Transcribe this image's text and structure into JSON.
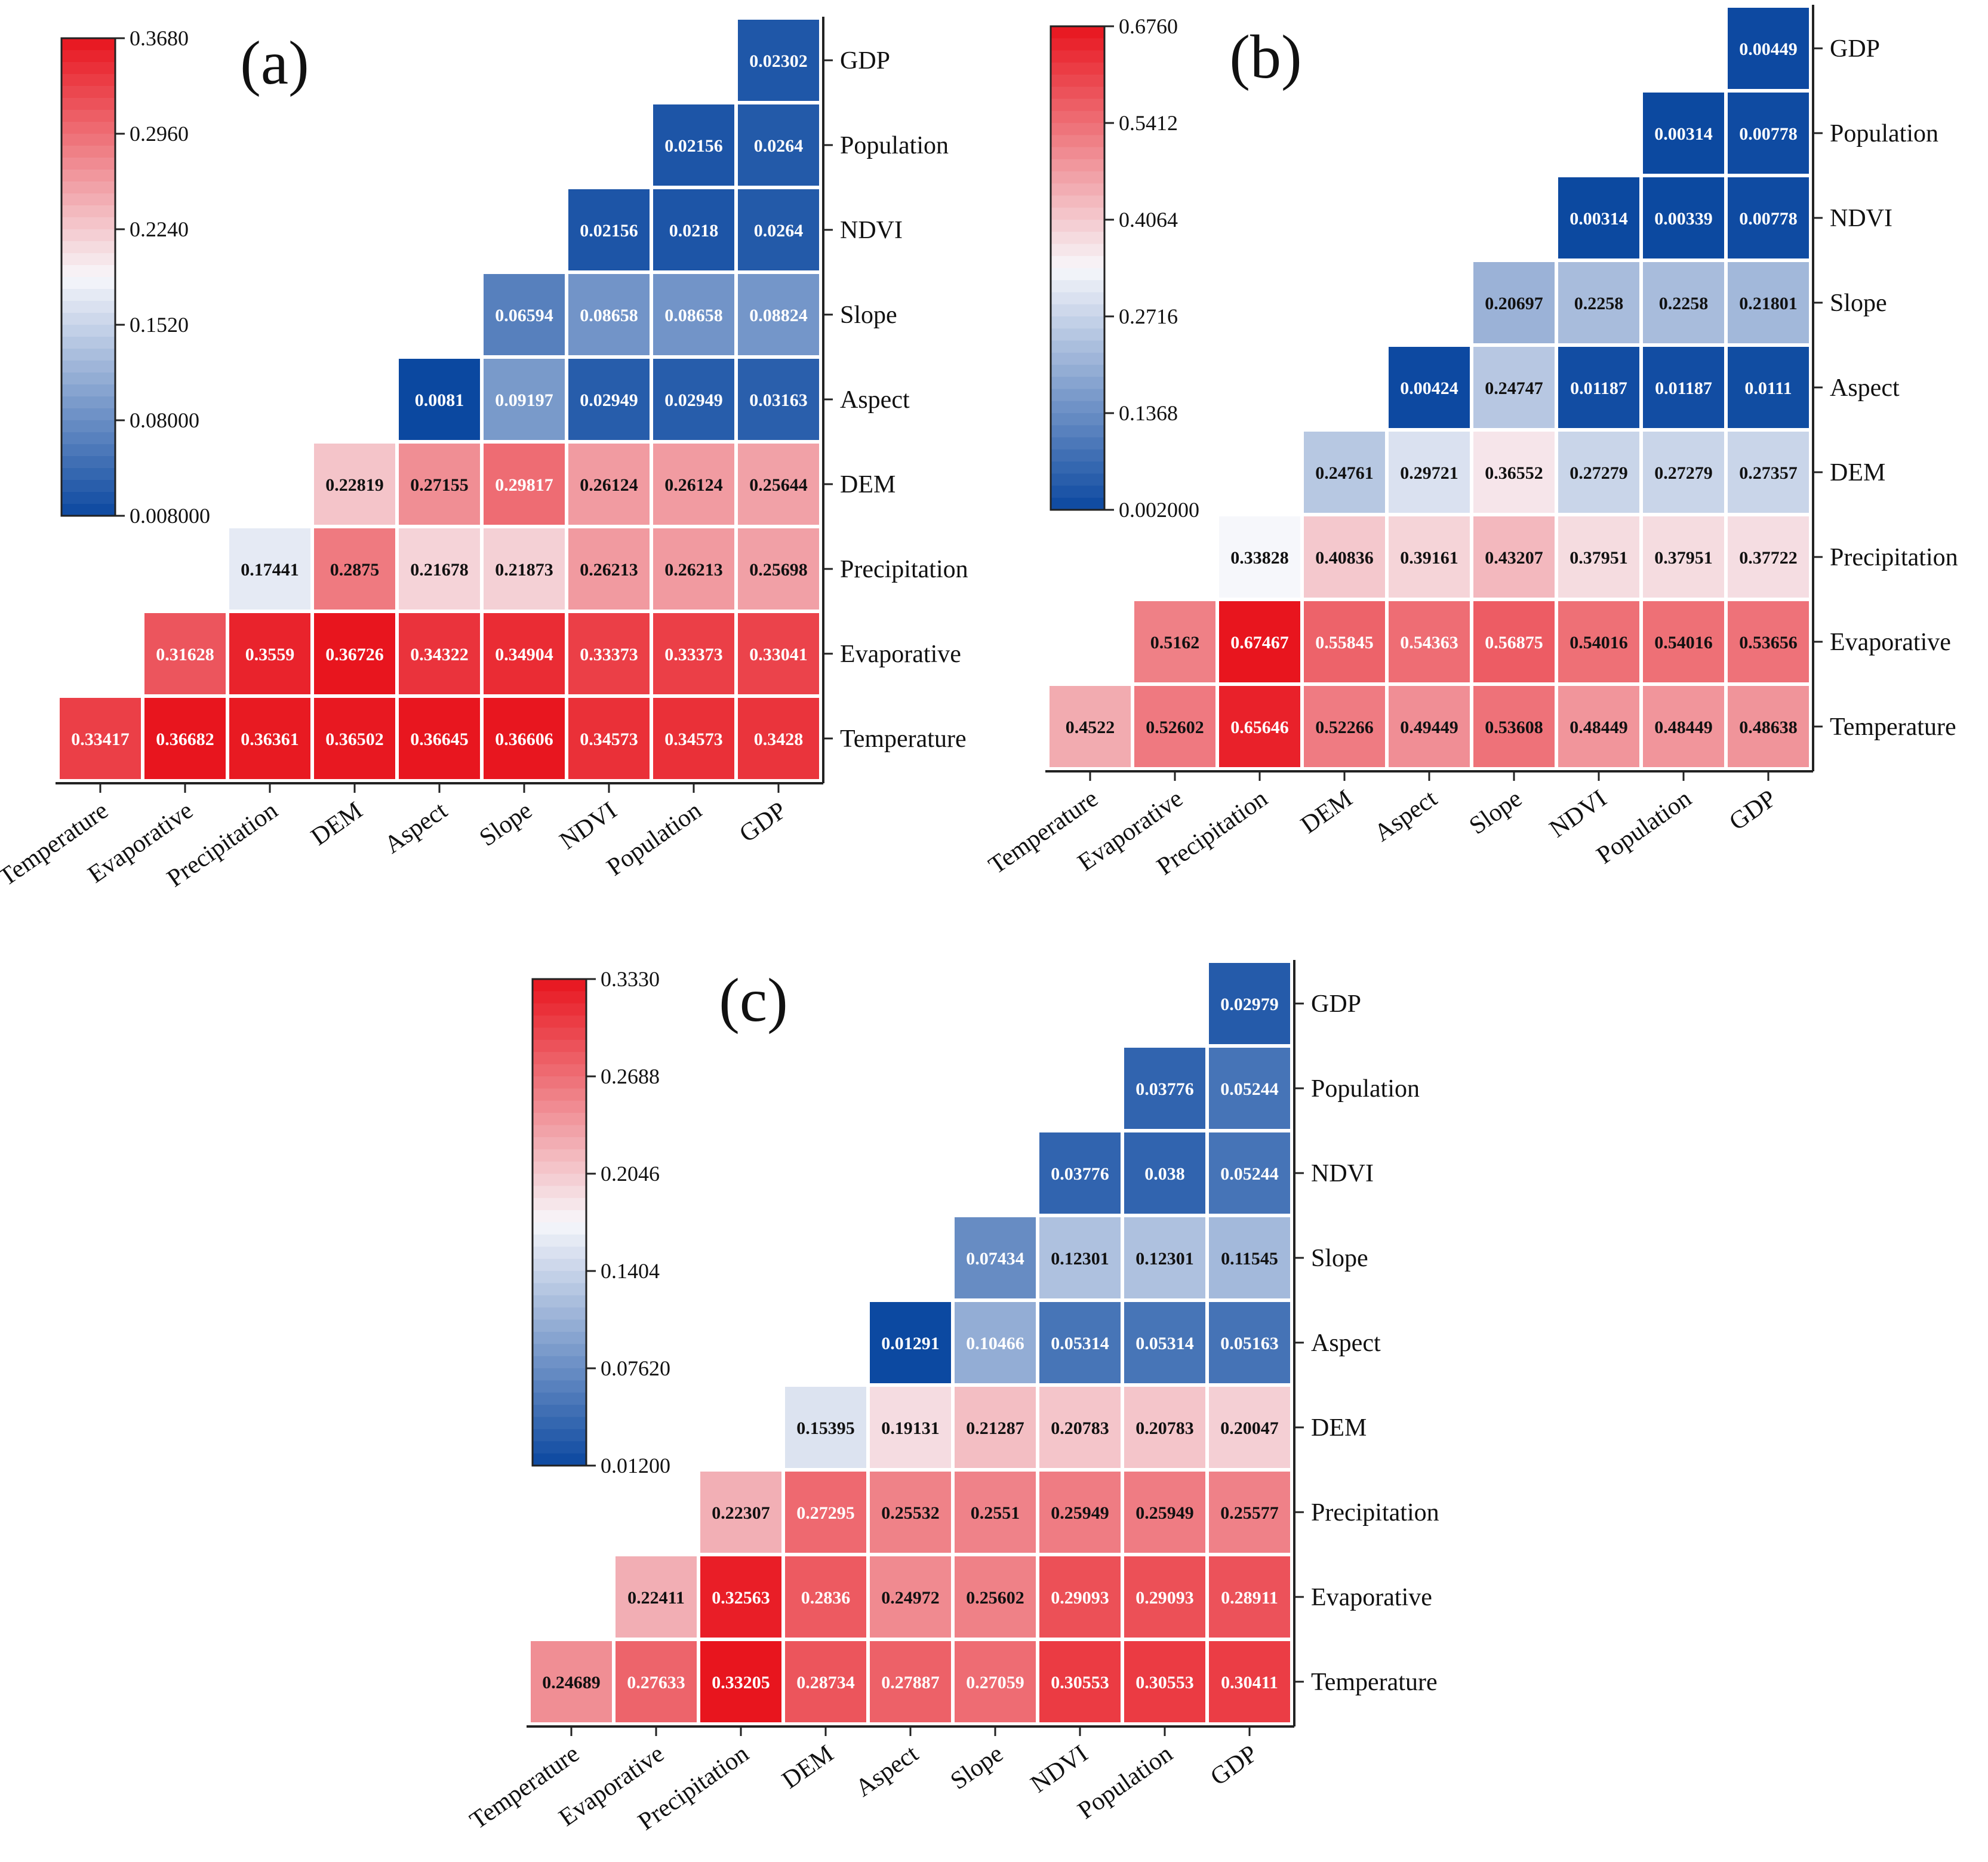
{
  "colors": {
    "low": "#0b48a0",
    "mid": "#f7f7fb",
    "high": "#e8141d",
    "gridline": "#ffffff",
    "axis": "#222222"
  },
  "chart_data": [
    {
      "type": "heatmap",
      "title": "(a)",
      "row_labels": [
        "GDP",
        "Population",
        "NDVI",
        "Slope",
        "Aspect",
        "DEM",
        "Precipitation",
        "Evaporative",
        "Temperature"
      ],
      "col_labels": [
        "Temperature",
        "Evaporative",
        "Precipitation",
        "DEM",
        "Aspect",
        "Slope",
        "NDVI",
        "Population",
        "GDP"
      ],
      "colorbar_ticks": [
        "0.3680",
        "0.2960",
        "0.2240",
        "0.1520",
        "0.08000",
        "0.008000"
      ],
      "range": [
        0.008,
        0.368
      ],
      "grid": false,
      "legend": "top-left",
      "values": [
        [
          null,
          null,
          null,
          null,
          null,
          null,
          null,
          null,
          0.02302
        ],
        [
          null,
          null,
          null,
          null,
          null,
          null,
          null,
          0.02156,
          0.0264
        ],
        [
          null,
          null,
          null,
          null,
          null,
          null,
          0.02156,
          0.0218,
          0.0264
        ],
        [
          null,
          null,
          null,
          null,
          null,
          0.06594,
          0.08658,
          0.08658,
          0.08824
        ],
        [
          null,
          null,
          null,
          null,
          0.0081,
          0.09197,
          0.02949,
          0.02949,
          0.03163
        ],
        [
          null,
          null,
          null,
          0.22819,
          0.27155,
          0.29817,
          0.26124,
          0.26124,
          0.25644
        ],
        [
          null,
          null,
          0.17441,
          0.2875,
          0.21678,
          0.21873,
          0.26213,
          0.26213,
          0.25698
        ],
        [
          null,
          0.31628,
          0.3559,
          0.36726,
          0.34322,
          0.34904,
          0.33373,
          0.33373,
          0.33041
        ],
        [
          0.33417,
          0.36682,
          0.36361,
          0.36502,
          0.36645,
          0.36606,
          0.34573,
          0.34573,
          0.3428
        ]
      ]
    },
    {
      "type": "heatmap",
      "title": "(b)",
      "row_labels": [
        "GDP",
        "Population",
        "NDVI",
        "Slope",
        "Aspect",
        "DEM",
        "Precipitation",
        "Evaporative",
        "Temperature"
      ],
      "col_labels": [
        "Temperature",
        "Evaporative",
        "Precipitation",
        "DEM",
        "Aspect",
        "Slope",
        "NDVI",
        "Population",
        "GDP"
      ],
      "colorbar_ticks": [
        "0.6760",
        "0.5412",
        "0.4064",
        "0.2716",
        "0.1368",
        "0.002000"
      ],
      "range": [
        0.002,
        0.676
      ],
      "grid": false,
      "legend": "top-left",
      "values": [
        [
          null,
          null,
          null,
          null,
          null,
          null,
          null,
          null,
          0.00449
        ],
        [
          null,
          null,
          null,
          null,
          null,
          null,
          null,
          0.00314,
          0.00778
        ],
        [
          null,
          null,
          null,
          null,
          null,
          null,
          0.00314,
          0.00339,
          0.00778
        ],
        [
          null,
          null,
          null,
          null,
          null,
          0.20697,
          0.2258,
          0.2258,
          0.21801
        ],
        [
          null,
          null,
          null,
          null,
          0.00424,
          0.24747,
          0.01187,
          0.01187,
          0.0111
        ],
        [
          null,
          null,
          null,
          0.24761,
          0.29721,
          0.36552,
          0.27279,
          0.27279,
          0.27357
        ],
        [
          null,
          null,
          0.33828,
          0.40836,
          0.39161,
          0.43207,
          0.37951,
          0.37951,
          0.37722
        ],
        [
          null,
          0.5162,
          0.67467,
          0.55845,
          0.54363,
          0.56875,
          0.54016,
          0.54016,
          0.53656
        ],
        [
          0.4522,
          0.52602,
          0.65646,
          0.52266,
          0.49449,
          0.53608,
          0.48449,
          0.48449,
          0.48638
        ]
      ]
    },
    {
      "type": "heatmap",
      "title": "(c)",
      "row_labels": [
        "GDP",
        "Population",
        "NDVI",
        "Slope",
        "Aspect",
        "DEM",
        "Precipitation",
        "Evaporative",
        "Temperature"
      ],
      "col_labels": [
        "Temperature",
        "Evaporative",
        "Precipitation",
        "DEM",
        "Aspect",
        "Slope",
        "NDVI",
        "Population",
        "GDP"
      ],
      "colorbar_ticks": [
        "0.3330",
        "0.2688",
        "0.2046",
        "0.1404",
        "0.07620",
        "0.01200"
      ],
      "range": [
        0.012,
        0.333
      ],
      "grid": false,
      "legend": "top-left",
      "values": [
        [
          null,
          null,
          null,
          null,
          null,
          null,
          null,
          null,
          0.02979
        ],
        [
          null,
          null,
          null,
          null,
          null,
          null,
          null,
          0.03776,
          0.05244
        ],
        [
          null,
          null,
          null,
          null,
          null,
          null,
          0.03776,
          0.038,
          0.05244
        ],
        [
          null,
          null,
          null,
          null,
          null,
          0.07434,
          0.12301,
          0.12301,
          0.11545
        ],
        [
          null,
          null,
          null,
          null,
          0.01291,
          0.10466,
          0.05314,
          0.05314,
          0.05163
        ],
        [
          null,
          null,
          null,
          0.15395,
          0.19131,
          0.21287,
          0.20783,
          0.20783,
          0.20047
        ],
        [
          null,
          null,
          0.22307,
          0.27295,
          0.25532,
          0.2551,
          0.25949,
          0.25949,
          0.25577
        ],
        [
          null,
          0.22411,
          0.32563,
          0.2836,
          0.24972,
          0.25602,
          0.29093,
          0.29093,
          0.28911
        ],
        [
          0.24689,
          0.27633,
          0.33205,
          0.28734,
          0.27887,
          0.27059,
          0.30553,
          0.30553,
          0.30411
        ]
      ]
    }
  ]
}
